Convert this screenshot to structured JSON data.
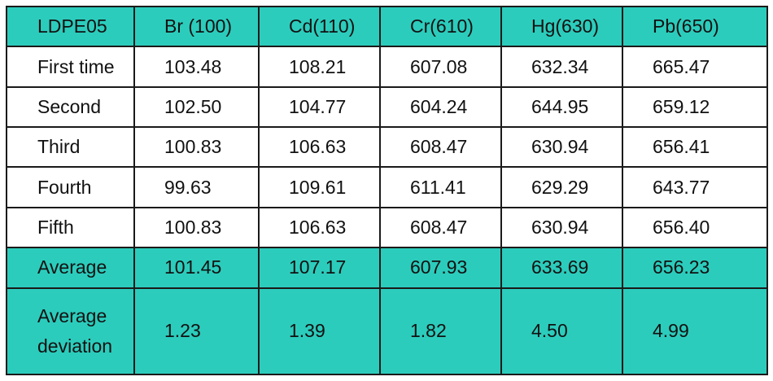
{
  "table": {
    "header": [
      "LDPE05",
      "Br (100)",
      "Cd(110)",
      "Cr(610)",
      "Hg(630)",
      "Pb(650)"
    ],
    "rows": [
      {
        "label": "First time",
        "values": [
          "103.48",
          "108.21",
          "607.08",
          "632.34",
          "665.47"
        ]
      },
      {
        "label": "Second",
        "values": [
          "102.50",
          "104.77",
          "604.24",
          "644.95",
          "659.12"
        ]
      },
      {
        "label": "Third",
        "values": [
          "100.83",
          "106.63",
          "608.47",
          "630.94",
          "656.41"
        ]
      },
      {
        "label": "Fourth",
        "values": [
          "99.63",
          "109.61",
          "611.41",
          "629.29",
          "643.77"
        ]
      },
      {
        "label": "Fifth",
        "values": [
          "100.83",
          "106.63",
          "608.47",
          "630.94",
          "656.40"
        ]
      }
    ],
    "average": {
      "label": "Average",
      "values": [
        "101.45",
        "107.17",
        "607.93",
        "633.69",
        "656.23"
      ]
    },
    "deviation": {
      "label_line1": "Average",
      "label_line2": "deviation",
      "values": [
        "1.23",
        "1.39",
        "1.82",
        "4.50",
        "4.99"
      ]
    }
  },
  "colors": {
    "accent": "#2cccbc",
    "border": "#1a1a1a"
  }
}
